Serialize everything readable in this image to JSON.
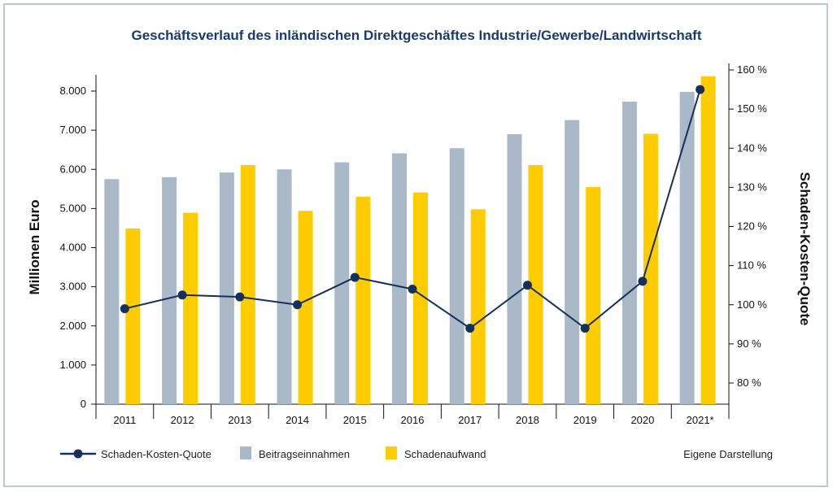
{
  "chart_data": {
    "type": "bar",
    "title": "Geschäftsverlauf des inländischen Direktgeschäftes Industrie/Gewerbe/Landwirtschaft",
    "categories": [
      "2011",
      "2012",
      "2013",
      "2014",
      "2015",
      "2016",
      "2017",
      "2018",
      "2019",
      "2020",
      "2021*"
    ],
    "ylabel": "Millionen Euro",
    "ylim": [
      0,
      8000
    ],
    "yticks": [
      "0",
      "1.000",
      "2.000",
      "3.000",
      "4.000",
      "5.000",
      "6.000",
      "7.000",
      "8.000"
    ],
    "y2label": "Schaden-Kosten-Quote",
    "y2lim": [
      80,
      160
    ],
    "y2ticks": [
      "80 %",
      "90 %",
      "100 %",
      "110 %",
      "120 %",
      "130 %",
      "140 %",
      "150 %",
      "160 %"
    ],
    "series": [
      {
        "name": "Beitragseinnahmen",
        "kind": "bar",
        "color": "#a9b9c8",
        "values": [
          5750,
          5800,
          5920,
          6000,
          6180,
          6410,
          6540,
          6900,
          7260,
          7730,
          7980
        ]
      },
      {
        "name": "Schadenaufwand",
        "kind": "bar",
        "color": "#ffcc00",
        "values": [
          4490,
          4890,
          6110,
          4940,
          5300,
          5410,
          4980,
          6110,
          5550,
          6910,
          8380
        ]
      },
      {
        "name": "Schaden-Kosten-Quote",
        "kind": "line",
        "axis": "right",
        "color": "#15305a",
        "values": [
          99,
          102.5,
          102,
          100,
          107,
          104,
          94,
          105,
          94,
          106,
          155
        ]
      }
    ],
    "grid": false,
    "legend": "bottom"
  },
  "source_note": "Eigene Darstellung"
}
